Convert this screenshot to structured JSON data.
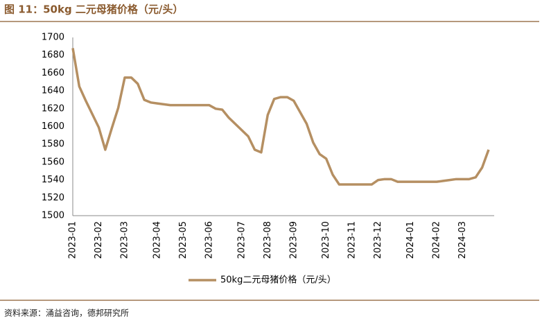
{
  "chart_data": {
    "type": "line",
    "title": "图 11：50kg 二元母猪价格（元/头）",
    "source": "资料来源：涌益咨询，德邦研究所",
    "categories": [
      "2023-01",
      null,
      null,
      null,
      "2023-02",
      null,
      null,
      null,
      "2023-03",
      null,
      null,
      null,
      null,
      "2023-04",
      null,
      null,
      null,
      "2023-05",
      null,
      null,
      null,
      "2023-06",
      null,
      null,
      null,
      null,
      "2023-07",
      null,
      null,
      null,
      "2023-08",
      null,
      null,
      null,
      "2023-09",
      null,
      null,
      null,
      null,
      "2023-10",
      null,
      null,
      null,
      "2023-11",
      null,
      null,
      null,
      "2023-12",
      null,
      null,
      null,
      null,
      "2024-01",
      null,
      null,
      null,
      "2024-02",
      null,
      null,
      null,
      "2024-03",
      null,
      null,
      null,
      null
    ],
    "series": [
      {
        "name": "50kg二元母猪价格（元/头）",
        "color": "#b58f62",
        "values": [
          1688,
          1645,
          1629,
          1614,
          1599,
          1574,
          1598,
          1621,
          1655,
          1655,
          1648,
          1630,
          1627,
          1626,
          1625,
          1624,
          1624,
          1624,
          1624,
          1624,
          1624,
          1624,
          1620,
          1619,
          1610,
          1603,
          1596,
          1589,
          1574,
          1571,
          1613,
          1631,
          1633,
          1633,
          1629,
          1616,
          1603,
          1582,
          1569,
          1564,
          1546,
          1535,
          1535,
          1535,
          1535,
          1535,
          1535,
          1540,
          1541,
          1541,
          1538,
          1538,
          1538,
          1538,
          1538,
          1538,
          1538,
          1539,
          1540,
          1541,
          1541,
          1541,
          1543,
          1554,
          1574
        ]
      }
    ],
    "ylim": [
      1500,
      1700
    ],
    "yticks": [
      1500,
      1520,
      1540,
      1560,
      1580,
      1600,
      1620,
      1640,
      1660,
      1680,
      1700
    ],
    "grid": false
  }
}
